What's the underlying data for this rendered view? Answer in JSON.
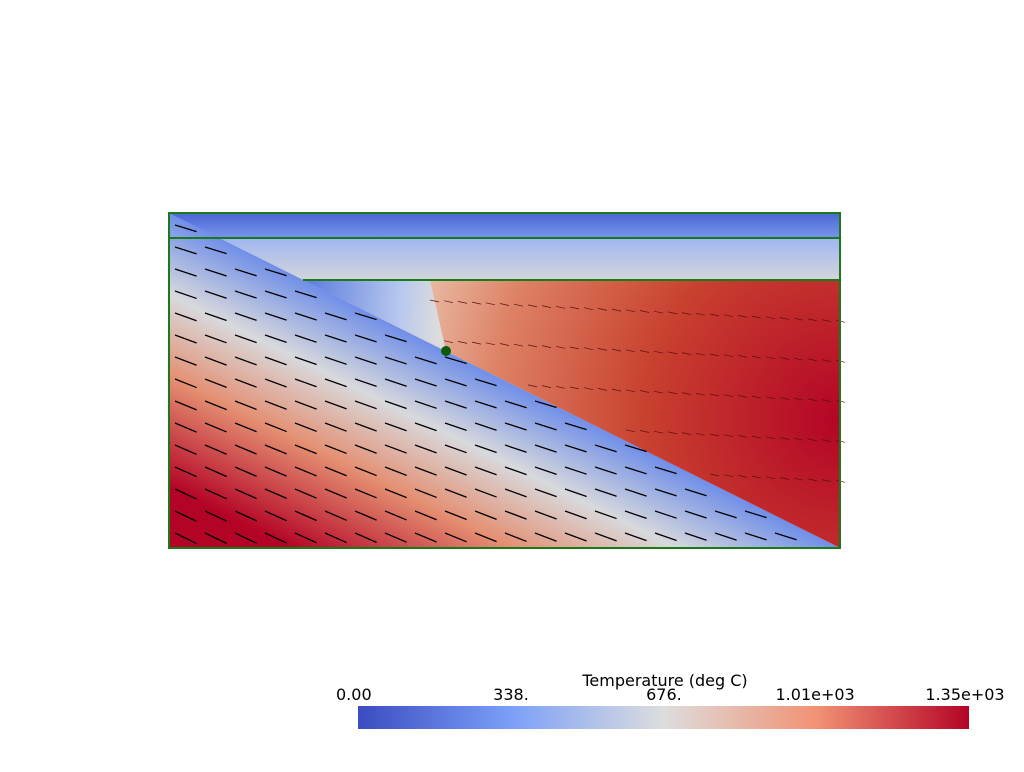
{
  "colorbar": {
    "title": "Temperature (deg C)",
    "range": [
      0,
      1350
    ],
    "ticks": [
      {
        "value": 0,
        "label": "0.00"
      },
      {
        "value": 338,
        "label": "338."
      },
      {
        "value": 676,
        "label": "676."
      },
      {
        "value": 1010,
        "label": "1.01e+03"
      },
      {
        "value": 1350,
        "label": "1.35e+03"
      }
    ]
  }
}
